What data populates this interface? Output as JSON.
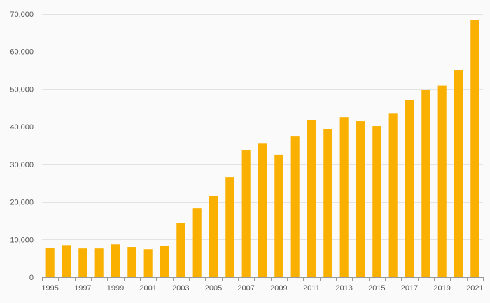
{
  "chart_data": {
    "type": "bar",
    "title": "",
    "xlabel": "",
    "ylabel": "",
    "ylim": [
      0,
      70000
    ],
    "yticks": [
      0,
      10000,
      20000,
      30000,
      40000,
      50000,
      60000,
      70000
    ],
    "ytick_labels": [
      "0",
      "10,000",
      "20,000",
      "30,000",
      "40,000",
      "50,000",
      "60,000",
      "70,000"
    ],
    "grid": true,
    "legend": "none",
    "bar_color": "#f9b000",
    "categories": [
      "1995",
      "1996",
      "1997",
      "1998",
      "1999",
      "2000",
      "2001",
      "2002",
      "2003",
      "2004",
      "2005",
      "2006",
      "2007",
      "2008",
      "2009",
      "2010",
      "2011",
      "2012",
      "2013",
      "2014",
      "2015",
      "2016",
      "2017",
      "2018",
      "2019",
      "2020",
      "2021"
    ],
    "xtick_labels": [
      "1995",
      "1997",
      "1999",
      "2001",
      "2003",
      "2005",
      "2007",
      "2009",
      "2011",
      "2013",
      "2015",
      "2017",
      "2019",
      "2021"
    ],
    "values": [
      7800,
      8500,
      7600,
      7600,
      8700,
      8000,
      7400,
      8300,
      14500,
      18400,
      21600,
      26600,
      33700,
      35500,
      32600,
      37400,
      41700,
      39300,
      42600,
      41500,
      40200,
      43500,
      47100,
      49900,
      50900,
      55100,
      68500
    ]
  }
}
